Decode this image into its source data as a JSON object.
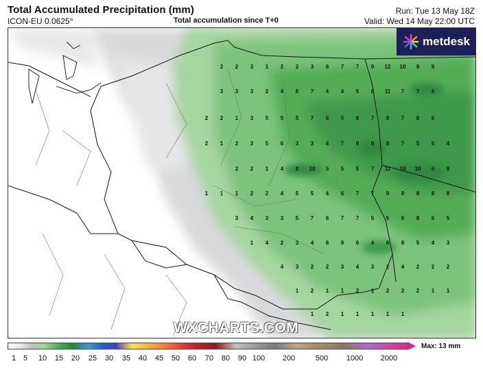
{
  "header": {
    "title": "Total Accumulated Precipitation (mm)",
    "model": "ICON-EU 0.0625°",
    "subtitle": "Total accumulation since T+0",
    "run": "Run: Tue 13 May 18Z",
    "valid": "Valid: Wed 14 May 22:00 UTC"
  },
  "brand": {
    "name": "metdesk",
    "watermark": "WXCHARTS.COM",
    "badge_color": "#1c2057"
  },
  "legend": {
    "max_label": "Max: 13 mm",
    "ticks": [
      "1",
      "5",
      "10",
      "15",
      "20",
      "25",
      "30",
      "35",
      "40",
      "45",
      "50",
      "60",
      "70",
      "80",
      "90",
      "100",
      "200",
      "500",
      "1000",
      "2000"
    ]
  },
  "map": {
    "rows": [
      [
        "2",
        "2",
        "3",
        "1",
        "2",
        "2",
        "3",
        "6",
        "7",
        "7",
        "9",
        "12",
        "10",
        "9",
        "9"
      ],
      [
        "3",
        "3",
        "3",
        "2",
        "4",
        "6",
        "7",
        "4",
        "4",
        "5",
        "8",
        "11",
        "7",
        "7",
        "6"
      ],
      [
        "2",
        "2",
        "1",
        "3",
        "5",
        "5",
        "5",
        "7",
        "6",
        "5",
        "8",
        "7",
        "8",
        "7",
        "8",
        "6"
      ],
      [
        "2",
        "1",
        "2",
        "3",
        "5",
        "6",
        "3",
        "3",
        "4",
        "7",
        "9",
        "8",
        "8",
        "7",
        "5",
        "5",
        "4"
      ],
      [
        "2",
        "2",
        "1",
        "4",
        "8",
        "10",
        "5",
        "5",
        "5",
        "7",
        "11",
        "10",
        "10",
        "9",
        "8"
      ],
      [
        "1",
        "1",
        "1",
        "2",
        "2",
        "4",
        "5",
        "5",
        "4",
        "6",
        "7",
        "7",
        "9",
        "8",
        "8",
        "8",
        "8"
      ],
      [
        "3",
        "4",
        "3",
        "3",
        "5",
        "7",
        "6",
        "7",
        "7",
        "5",
        "5",
        "6",
        "8",
        "6",
        "5"
      ],
      [
        "1",
        "4",
        "2",
        "3",
        "4",
        "6",
        "9",
        "6",
        "4",
        "6",
        "8",
        "5",
        "4",
        "3"
      ],
      [
        "4",
        "3",
        "2",
        "2",
        "3",
        "4",
        "3",
        "2",
        "4",
        "2",
        "2",
        "2"
      ],
      [
        "1",
        "2",
        "1",
        "1",
        "2",
        "1",
        "2",
        "2",
        "2",
        "1",
        "1"
      ],
      [
        "1",
        "2",
        "1",
        "1",
        "1",
        "1",
        "1"
      ]
    ]
  }
}
